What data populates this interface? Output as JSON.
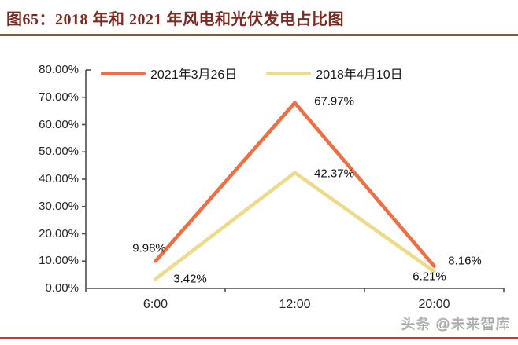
{
  "title": "图65：2018 年和 2021 年风电和光伏发电占比图",
  "watermark": "头条 @未来智库",
  "colors": {
    "title_text": "#7d2b22",
    "top_rule": "#b4452e",
    "bottom_rule": "#c03d27",
    "axis": "#4d4d4d",
    "series_2021": "#ed6f44",
    "series_2018": "#eedb8a"
  },
  "chart_data": {
    "type": "line",
    "title": "2018 年和 2021 年风电和光伏发电占比图",
    "categories": [
      "6:00",
      "12:00",
      "20:00"
    ],
    "series": [
      {
        "name": "2021年3月26日",
        "color": "#ed6f44",
        "values": [
          9.98,
          67.97,
          8.16
        ],
        "point_labels": [
          "9.98%",
          "67.97%",
          "8.16%"
        ]
      },
      {
        "name": "2018年4月10日",
        "color": "#eedb8a",
        "values": [
          3.42,
          42.37,
          6.21
        ],
        "point_labels": [
          "3.42%",
          "42.37%",
          "6.21%"
        ]
      }
    ],
    "xlabel": "",
    "ylabel": "",
    "ylim": [
      0,
      80
    ],
    "ytick_step": 10,
    "ytick_labels": [
      "0.00%",
      "10.00%",
      "20.00%",
      "30.00%",
      "40.00%",
      "50.00%",
      "60.00%",
      "70.00%",
      "80.00%"
    ],
    "legend_position": "top",
    "grid": false
  }
}
